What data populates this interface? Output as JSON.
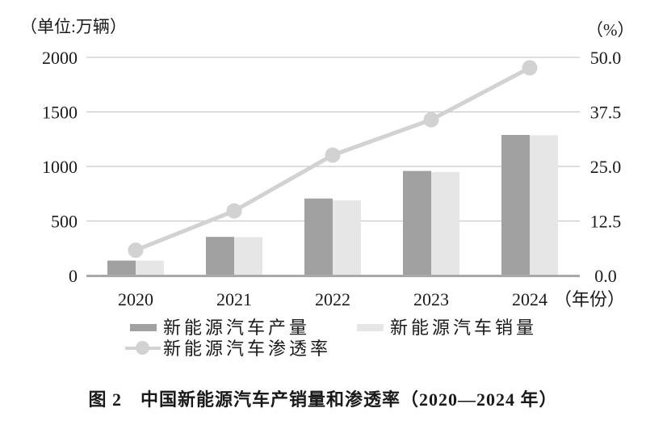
{
  "header": {
    "left_unit": "（单位:万辆）",
    "right_unit": "（%）"
  },
  "chart_data": {
    "type": "bar",
    "subtype": "grouped-bars-with-line",
    "title": "中国新能源汽车产销量和渗透率（2020—2024年）",
    "categories": [
      "2020",
      "2021",
      "2022",
      "2023",
      "2024"
    ],
    "series": [
      {
        "name": "新能源汽车产量",
        "type": "bar",
        "axis": "left",
        "color": "#a1a1a1",
        "values": [
          136.6,
          354.5,
          705.8,
          958.7,
          1288.8
        ]
      },
      {
        "name": "新能源汽车销量",
        "type": "bar",
        "axis": "left",
        "color": "#e6e6e6",
        "values": [
          136.7,
          352.1,
          688.7,
          949.5,
          1286.6
        ]
      },
      {
        "name": "新能源汽车渗透率",
        "type": "line",
        "axis": "right",
        "color": "#d2d2d2",
        "values": [
          5.8,
          14.8,
          27.6,
          35.7,
          47.6
        ]
      }
    ],
    "left_axis": {
      "unit": "（单位:万辆）",
      "min": 0,
      "max": 2000,
      "tick_labels": [
        "2000",
        "1500",
        "1000",
        "500",
        "0"
      ]
    },
    "right_axis": {
      "unit": "（%）",
      "min": 0,
      "max": 50,
      "tick_labels": [
        "50.0",
        "37.5",
        "25.0",
        "12.5",
        "0.0"
      ]
    },
    "x_axis": {
      "suffix_label": "（年份）"
    },
    "grid": true,
    "legend_position": "bottom"
  },
  "legend": {
    "production_label": "新能源汽车产量",
    "sales_label": "新能源汽车销量",
    "penetration_label": "新能源汽车渗透率"
  },
  "caption": "图 2　中国新能源汽车产销量和渗透率（2020—2024 年）",
  "colors": {
    "production_bar": "#a1a1a1",
    "sales_bar": "#e6e6e6",
    "line": "#d2d2d2",
    "gridline": "#c9c9c9",
    "axis_line": "#a9a9a9",
    "text": "#1a1a1a",
    "background": "#ffffff"
  }
}
